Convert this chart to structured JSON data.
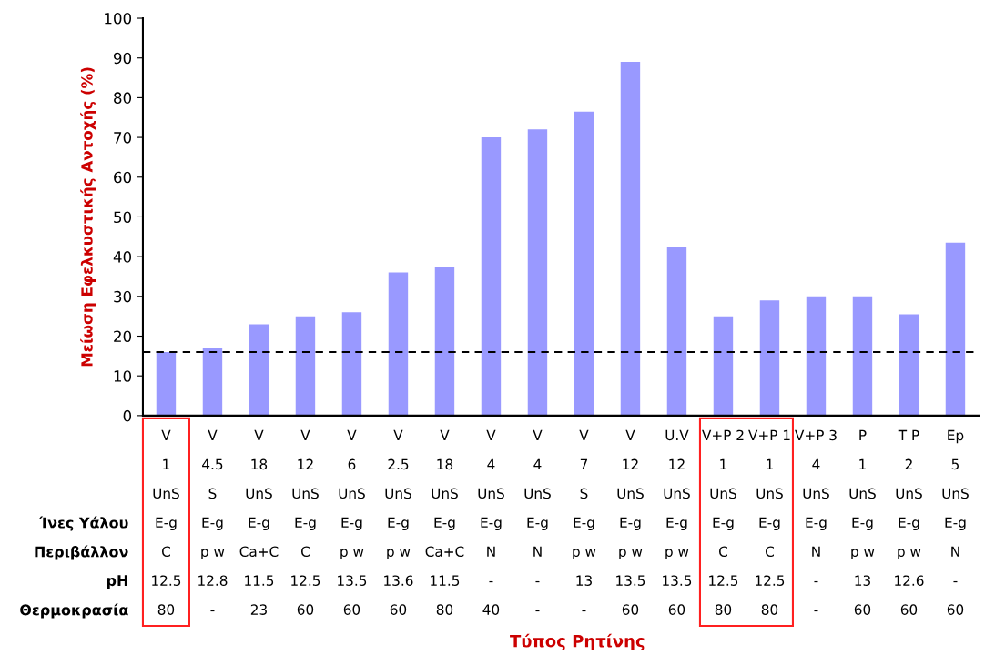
{
  "chart_data": {
    "type": "bar",
    "ylabel": "Μείωση Εφελκυστικής Αντοχής (%)",
    "categories": [
      "V\n1\nUnS\nE-g\nC\n12.5\n80",
      "V\n4.5\nS\nE-g\np w\n12.8\n-",
      "V\n18\nUnS\nE-g\nCa+C\n11.5\n23",
      "V\n12\nUnS\nE-g\nC\n12.5\n60",
      "V\n6\nUnS\nE-g\np w\n13.5\n60",
      "V\n2.5\nUnS\nE-g\np w\n13.6\n60",
      "V\n18\nUnS\nE-g\nCa+C\n11.5\n80",
      "V\n4\nUnS\nE-g\nN\n-\n40",
      "V\n4\nUnS\nE-g\nN\n-\n-",
      "V\n7\nS\nE-g\np w\n13\n-",
      "V\n12\nUnS\nE-g\np w\n13.5\n60",
      "U.V\n12\nUnS\nE-g\np w\n13.5\n60",
      "V+P 2\n1\nUnS\nE-g\nC\n12.5\n80",
      "V+P 1\n1\nUnS\nE-g\nC\n12.5\n80",
      "V+P 3\n4\nUnS\nE-g\nN\n-\n-",
      "P\n1\nUnS\nE-g\np w\n13\n60",
      "T P\n2\nUnS\nE-g\np w\n12.6\n60",
      "Ep\n5\nUnS\nE-g\nN\n-\n60"
    ],
    "values": [
      16,
      17,
      23,
      25,
      26,
      36,
      37.5,
      70,
      72,
      76.5,
      89,
      42.5,
      25,
      29,
      30,
      30,
      25.5,
      43.5
    ],
    "color": "#9999ff",
    "ylim": [
      0,
      100
    ],
    "yticks": [
      0,
      10,
      20,
      30,
      40,
      50,
      60,
      70,
      80,
      90,
      100
    ],
    "grid": false,
    "ref_lines": [
      {
        "axis": "y",
        "value": 16,
        "color": "#000000",
        "line_style": "dashed"
      }
    ],
    "annotations": [
      "Ίνες Υάλου",
      "Περιβάλλον",
      "pH",
      "Θερμοκρασία",
      "Τύπος Ρητίνης"
    ]
  }
}
